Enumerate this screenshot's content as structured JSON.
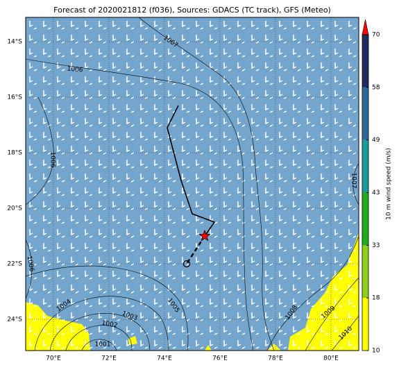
{
  "chart_data": {
    "type": "map",
    "title": "Forecast of 2020021812 (f036), Sources: GDACS (TC track), GFS (Meteo)",
    "xlim": [
      69,
      81
    ],
    "ylim": [
      -25.125,
      -13.125
    ],
    "xticks": [
      {
        "value": 70,
        "label": "70°E"
      },
      {
        "value": 72,
        "label": "72°E"
      },
      {
        "value": 74,
        "label": "74°E"
      },
      {
        "value": 76,
        "label": "76°E"
      },
      {
        "value": 78,
        "label": "78°E"
      },
      {
        "value": 80,
        "label": "80°E"
      }
    ],
    "yticks": [
      {
        "value": -14,
        "label": "14°S"
      },
      {
        "value": -16,
        "label": "16°S"
      },
      {
        "value": -18,
        "label": "18°S"
      },
      {
        "value": -20,
        "label": "20°S"
      },
      {
        "value": -22,
        "label": "22°S"
      },
      {
        "value": -24,
        "label": "24°S"
      }
    ],
    "grid": true,
    "track": {
      "lon": [
        74.5,
        74.1,
        74.6,
        75.0,
        75.8,
        75.45
      ],
      "lat": [
        -16.3,
        -17.1,
        -19.0,
        -20.2,
        -20.5,
        -21.0
      ],
      "color": "#000000"
    },
    "forecast": {
      "lon": [
        75.45,
        74.8
      ],
      "lat": [
        -21.0,
        -22.0
      ],
      "color": "#000000"
    },
    "current_position": {
      "lon": 75.45,
      "lat": -21.0,
      "color": "#ff0000"
    },
    "isobar_labels": [
      1007,
      1006,
      1006,
      1006,
      1007,
      1005,
      1004,
      1003,
      1002,
      1001,
      1008,
      1009,
      1010
    ],
    "colorbar": {
      "label": "10 m wind speed (m/s)",
      "ticks": [
        10,
        18,
        33,
        43,
        49,
        58,
        70
      ],
      "colors": [
        "#ffff00",
        "#8fd11a",
        "#1faa1f",
        "#1a9c9c",
        "#2c6898",
        "#202a5e"
      ],
      "extend_color": "#ff0000"
    }
  }
}
